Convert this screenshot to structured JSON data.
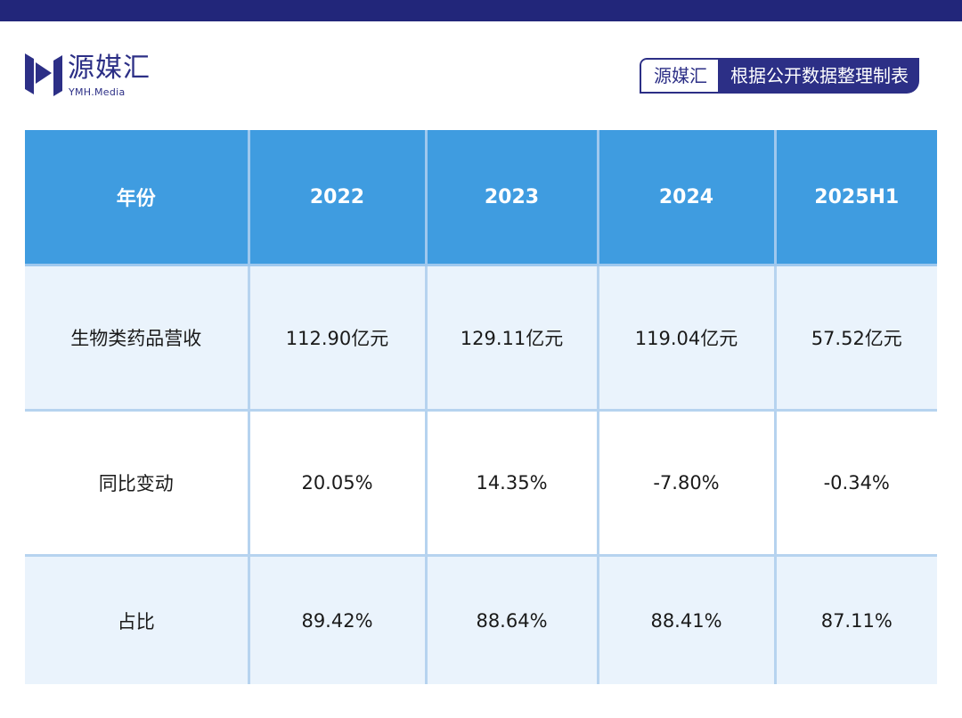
{
  "logo": {
    "name": "源媒汇",
    "subtitle": "YMH.Media"
  },
  "source_tag": {
    "brand": "源媒汇",
    "note": "根据公开数据整理制表"
  },
  "table": {
    "header": [
      "年份",
      "2022",
      "2023",
      "2024",
      "2025H1"
    ],
    "rows": [
      [
        "生物类药品营收",
        "112.90亿元",
        "129.11亿元",
        "119.04亿元",
        "57.52亿元"
      ],
      [
        "同比变动",
        "20.05%",
        "14.35%",
        "-7.80%",
        "-0.34%"
      ],
      [
        "占比",
        "89.42%",
        "88.64%",
        "88.41%",
        "87.11%"
      ]
    ]
  },
  "colors": {
    "brand": "#2c2f86",
    "header_fill": "#3f9ce0",
    "row_shade": "#eaf3fc",
    "grid": "#b6d3ef"
  }
}
